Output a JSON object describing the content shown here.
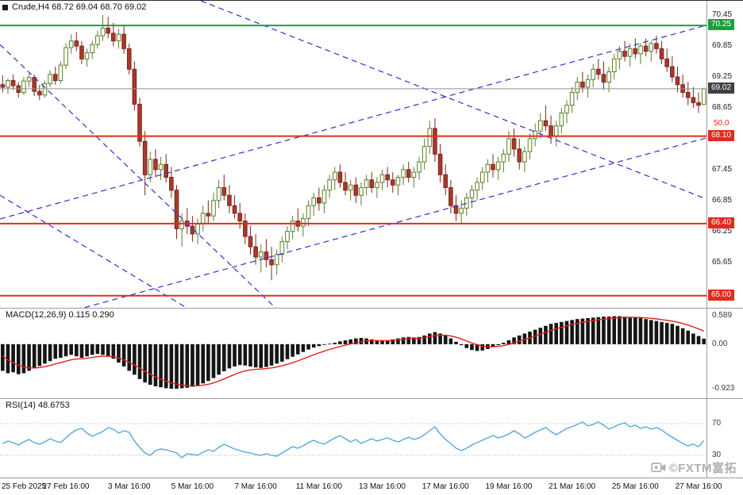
{
  "header": {
    "symbol_line": "Crude,H4 68.72 69.04 68.70 69.02"
  },
  "indicators": {
    "macd_label": "MACD(12,26,9) 0.115 0.290",
    "rsi_label": "RSI(14) 48.6753"
  },
  "watermark": {
    "text": "©FXTM富拓"
  },
  "time_axis": {
    "labels": [
      "25 Feb 2025",
      "27 Feb 16:00",
      "3 Mar 16:00",
      "5 Mar 16:00",
      "7 Mar 16:00",
      "11 Mar 16:00",
      "13 Mar 16:00",
      "17 Mar 16:00",
      "19 Mar 16:00",
      "21 Mar 16:00",
      "25 Mar 16:00",
      "27 Mar 16:00"
    ]
  },
  "colors": {
    "bull_fill": "#fdfef6",
    "bull_stroke": "#5b7d2f",
    "bear_fill": "#a8392c",
    "bear_stroke": "#7e251b",
    "macd_bar": "#151515",
    "macd_signal": "#e02318",
    "rsi_line": "#58a7dd",
    "trendline": "#3030cf",
    "green_level": "#1e9e3e",
    "red_level": "#e22b1e",
    "price_line": "#8f8f8f",
    "price_badge": "#3f3f3f",
    "separator": "#9c9c9c",
    "axis_text": "#1c1c1c",
    "sub_axis_text": "#3a3a3a"
  },
  "chart_data": [
    {
      "name": "price",
      "type": "candlestick",
      "symbol": "Crude",
      "timeframe": "H4",
      "title": "Crude,H4",
      "last_ohlc": {
        "open": 68.72,
        "high": 69.04,
        "low": 68.7,
        "close": 69.02
      },
      "ylim": [
        64.78,
        70.73
      ],
      "yticks": [
        70.45,
        69.85,
        69.25,
        68.65,
        67.45,
        66.85,
        66.25,
        65.65
      ],
      "hlines": [
        {
          "price": 70.25,
          "color": "#1e9e3e",
          "width": 2,
          "badge": true
        },
        {
          "price": 69.02,
          "color": "#8f8f8f",
          "width": 1,
          "badge": true,
          "badge_color": "#3f3f3f"
        },
        {
          "price": 68.1,
          "color": "#e22b1e",
          "width": 2,
          "badge": true,
          "tag": "50.0"
        },
        {
          "price": 66.4,
          "color": "#e22b1e",
          "width": 2,
          "badge": true
        },
        {
          "price": 65.0,
          "color": "#e22b1e",
          "width": 2,
          "badge": true
        }
      ],
      "trendlines": [
        {
          "i1": -0.5,
          "p1": 66.49,
          "i2": 136.5,
          "p2": 70.34
        },
        {
          "i1": 13.8,
          "p1": 64.72,
          "i2": 140.4,
          "p2": 68.26
        },
        {
          "i1": 37.6,
          "p1": 70.73,
          "i2": 140.4,
          "p2": 66.6
        },
        {
          "i1": -0.5,
          "p1": 69.88,
          "i2": 52.2,
          "p2": 64.72
        },
        {
          "i1": -0.5,
          "p1": 66.95,
          "i2": 35.6,
          "p2": 64.72
        }
      ],
      "candles": [
        [
          69.1,
          69.28,
          68.95,
          69.05
        ],
        [
          69.05,
          69.22,
          68.92,
          69.18
        ],
        [
          69.18,
          69.3,
          69.0,
          69.08
        ],
        [
          69.08,
          69.15,
          68.85,
          68.95
        ],
        [
          68.95,
          69.25,
          68.9,
          69.17
        ],
        [
          69.17,
          69.32,
          69.05,
          69.24
        ],
        [
          69.24,
          69.3,
          68.88,
          68.97
        ],
        [
          68.97,
          69.1,
          68.8,
          68.9
        ],
        [
          68.9,
          69.18,
          68.85,
          69.12
        ],
        [
          69.12,
          69.38,
          69.05,
          69.3
        ],
        [
          69.3,
          69.45,
          69.1,
          69.18
        ],
        [
          69.18,
          69.55,
          69.12,
          69.48
        ],
        [
          69.48,
          69.9,
          69.4,
          69.82
        ],
        [
          69.82,
          70.08,
          69.7,
          69.95
        ],
        [
          69.95,
          70.12,
          69.75,
          69.85
        ],
        [
          69.85,
          69.95,
          69.5,
          69.6
        ],
        [
          69.6,
          69.8,
          69.45,
          69.72
        ],
        [
          69.72,
          69.95,
          69.6,
          69.88
        ],
        [
          69.88,
          70.15,
          69.8,
          70.05
        ],
        [
          70.05,
          70.45,
          69.95,
          70.2
        ],
        [
          70.2,
          70.42,
          70.0,
          70.1
        ],
        [
          70.1,
          70.3,
          69.85,
          69.95
        ],
        [
          69.95,
          70.18,
          69.8,
          70.08
        ],
        [
          70.08,
          70.25,
          69.7,
          69.8
        ],
        [
          69.8,
          69.9,
          69.3,
          69.4
        ],
        [
          69.4,
          69.55,
          68.6,
          68.72
        ],
        [
          68.72,
          68.85,
          67.9,
          68.0
        ],
        [
          68.0,
          68.2,
          66.95,
          67.35
        ],
        [
          67.35,
          67.8,
          67.2,
          67.65
        ],
        [
          67.65,
          67.85,
          67.3,
          67.45
        ],
        [
          67.45,
          67.7,
          67.25,
          67.55
        ],
        [
          67.55,
          67.75,
          67.2,
          67.3
        ],
        [
          67.3,
          67.5,
          66.9,
          67.05
        ],
        [
          67.05,
          67.15,
          66.1,
          66.3
        ],
        [
          66.3,
          66.6,
          65.95,
          66.45
        ],
        [
          66.45,
          66.7,
          66.2,
          66.35
        ],
        [
          66.35,
          66.55,
          66.05,
          66.2
        ],
        [
          66.2,
          66.5,
          66.0,
          66.4
        ],
        [
          66.4,
          66.75,
          66.25,
          66.6
        ],
        [
          66.6,
          66.85,
          66.4,
          66.55
        ],
        [
          66.55,
          67.0,
          66.45,
          66.85
        ],
        [
          66.85,
          67.25,
          66.7,
          67.1
        ],
        [
          67.1,
          67.35,
          66.85,
          66.95
        ],
        [
          66.95,
          67.15,
          66.6,
          66.75
        ],
        [
          66.75,
          66.95,
          66.5,
          66.6
        ],
        [
          66.6,
          66.8,
          66.3,
          66.45
        ],
        [
          66.45,
          66.6,
          66.0,
          66.15
        ],
        [
          66.15,
          66.35,
          65.8,
          65.95
        ],
        [
          65.95,
          66.2,
          65.6,
          65.75
        ],
        [
          65.75,
          66.0,
          65.45,
          65.85
        ],
        [
          65.85,
          66.1,
          65.55,
          65.7
        ],
        [
          65.7,
          65.95,
          65.3,
          65.6
        ],
        [
          65.6,
          65.9,
          65.4,
          65.8
        ],
        [
          65.8,
          66.15,
          65.65,
          66.05
        ],
        [
          66.05,
          66.35,
          65.9,
          66.25
        ],
        [
          66.25,
          66.55,
          66.1,
          66.45
        ],
        [
          66.45,
          66.7,
          66.25,
          66.35
        ],
        [
          66.35,
          66.6,
          66.15,
          66.5
        ],
        [
          66.5,
          66.85,
          66.35,
          66.75
        ],
        [
          66.75,
          67.0,
          66.55,
          66.9
        ],
        [
          66.9,
          67.1,
          66.65,
          66.8
        ],
        [
          66.8,
          67.15,
          66.6,
          67.05
        ],
        [
          67.05,
          67.35,
          66.9,
          67.25
        ],
        [
          67.25,
          67.5,
          67.05,
          67.4
        ],
        [
          67.4,
          67.55,
          67.1,
          67.2
        ],
        [
          67.2,
          67.4,
          66.95,
          67.05
        ],
        [
          67.05,
          67.25,
          66.85,
          67.15
        ],
        [
          67.15,
          67.3,
          66.8,
          66.95
        ],
        [
          66.95,
          67.2,
          66.75,
          67.1
        ],
        [
          67.1,
          67.35,
          66.95,
          67.25
        ],
        [
          67.25,
          67.4,
          67.0,
          67.1
        ],
        [
          67.1,
          67.3,
          66.9,
          67.2
        ],
        [
          67.2,
          67.45,
          67.05,
          67.35
        ],
        [
          67.35,
          67.5,
          67.1,
          67.25
        ],
        [
          67.25,
          67.4,
          67.0,
          67.15
        ],
        [
          67.15,
          67.35,
          66.95,
          67.3
        ],
        [
          67.3,
          67.55,
          67.15,
          67.45
        ],
        [
          67.45,
          67.6,
          67.2,
          67.3
        ],
        [
          67.3,
          67.5,
          67.1,
          67.4
        ],
        [
          67.4,
          67.7,
          67.25,
          67.6
        ],
        [
          67.6,
          68.05,
          67.45,
          67.9
        ],
        [
          67.9,
          68.4,
          67.75,
          68.25
        ],
        [
          68.25,
          68.45,
          67.6,
          67.75
        ],
        [
          67.75,
          67.95,
          67.2,
          67.35
        ],
        [
          67.35,
          67.55,
          66.95,
          67.1
        ],
        [
          67.1,
          67.25,
          66.6,
          66.75
        ],
        [
          66.75,
          66.95,
          66.45,
          66.6
        ],
        [
          66.6,
          66.85,
          66.4,
          66.7
        ],
        [
          66.7,
          67.0,
          66.55,
          66.9
        ],
        [
          66.9,
          67.15,
          66.7,
          67.05
        ],
        [
          67.05,
          67.3,
          66.85,
          67.2
        ],
        [
          67.2,
          67.5,
          67.05,
          67.4
        ],
        [
          67.4,
          67.65,
          67.2,
          67.55
        ],
        [
          67.55,
          67.75,
          67.3,
          67.45
        ],
        [
          67.45,
          67.7,
          67.25,
          67.6
        ],
        [
          67.6,
          67.85,
          67.4,
          67.75
        ],
        [
          67.75,
          68.2,
          67.6,
          68.05
        ],
        [
          68.05,
          68.25,
          67.7,
          67.85
        ],
        [
          67.85,
          68.05,
          67.45,
          67.6
        ],
        [
          67.6,
          67.9,
          67.4,
          67.8
        ],
        [
          67.8,
          68.15,
          67.65,
          68.05
        ],
        [
          68.05,
          68.35,
          67.9,
          68.2
        ],
        [
          68.2,
          68.55,
          68.05,
          68.4
        ],
        [
          68.4,
          68.7,
          68.2,
          68.3
        ],
        [
          68.3,
          68.5,
          67.95,
          68.1
        ],
        [
          68.1,
          68.4,
          67.9,
          68.3
        ],
        [
          68.3,
          68.65,
          68.15,
          68.55
        ],
        [
          68.55,
          68.8,
          68.35,
          68.7
        ],
        [
          68.7,
          69.05,
          68.55,
          68.95
        ],
        [
          68.95,
          69.25,
          68.8,
          69.15
        ],
        [
          69.15,
          69.35,
          68.95,
          69.05
        ],
        [
          69.05,
          69.3,
          68.85,
          69.2
        ],
        [
          69.2,
          69.5,
          69.05,
          69.4
        ],
        [
          69.4,
          69.6,
          69.2,
          69.3
        ],
        [
          69.3,
          69.55,
          69.0,
          69.15
        ],
        [
          69.15,
          69.45,
          68.95,
          69.35
        ],
        [
          69.35,
          69.7,
          69.2,
          69.6
        ],
        [
          69.6,
          69.85,
          69.4,
          69.75
        ],
        [
          69.75,
          69.95,
          69.55,
          69.65
        ],
        [
          69.65,
          69.9,
          69.45,
          69.8
        ],
        [
          69.8,
          70.0,
          69.6,
          69.7
        ],
        [
          69.7,
          69.9,
          69.5,
          69.85
        ],
        [
          69.85,
          70.0,
          69.65,
          69.75
        ],
        [
          69.75,
          69.95,
          69.55,
          69.9
        ],
        [
          69.9,
          70.05,
          69.7,
          69.8
        ],
        [
          69.8,
          69.95,
          69.5,
          69.6
        ],
        [
          69.6,
          69.8,
          69.35,
          69.45
        ],
        [
          69.45,
          69.65,
          69.15,
          69.25
        ],
        [
          69.25,
          69.45,
          68.95,
          69.1
        ],
        [
          69.1,
          69.3,
          68.85,
          68.95
        ],
        [
          68.95,
          69.15,
          68.7,
          68.85
        ],
        [
          68.85,
          69.05,
          68.65,
          68.75
        ],
        [
          68.75,
          68.95,
          68.55,
          68.7
        ],
        [
          68.72,
          69.04,
          68.7,
          69.02
        ]
      ]
    },
    {
      "name": "macd",
      "type": "bar",
      "label": "MACD(12,26,9) 0.115 0.290",
      "macd_value": 0.115,
      "signal_value": 0.29,
      "ylim": [
        -1.1,
        0.72
      ],
      "yticks": [
        [
          0.589,
          "0.589"
        ],
        [
          0,
          "0.00"
        ],
        [
          -0.923,
          "-0.923"
        ]
      ],
      "values": [
        -0.55,
        -0.6,
        -0.58,
        -0.62,
        -0.6,
        -0.55,
        -0.5,
        -0.45,
        -0.4,
        -0.35,
        -0.3,
        -0.28,
        -0.25,
        -0.22,
        -0.25,
        -0.28,
        -0.25,
        -0.22,
        -0.2,
        -0.22,
        -0.25,
        -0.3,
        -0.38,
        -0.46,
        -0.55,
        -0.63,
        -0.72,
        -0.79,
        -0.84,
        -0.87,
        -0.89,
        -0.91,
        -0.92,
        -0.92,
        -0.91,
        -0.9,
        -0.88,
        -0.85,
        -0.81,
        -0.76,
        -0.7,
        -0.63,
        -0.56,
        -0.5,
        -0.46,
        -0.43,
        -0.44,
        -0.46,
        -0.48,
        -0.49,
        -0.47,
        -0.44,
        -0.4,
        -0.36,
        -0.31,
        -0.26,
        -0.21,
        -0.16,
        -0.11,
        -0.07,
        -0.04,
        -0.01,
        0.01,
        0.03,
        0.06,
        0.08,
        0.1,
        0.12,
        0.13,
        0.12,
        0.1,
        0.08,
        0.07,
        0.08,
        0.1,
        0.12,
        0.14,
        0.15,
        0.14,
        0.15,
        0.18,
        0.22,
        0.25,
        0.22,
        0.18,
        0.12,
        0.05,
        -0.02,
        -0.08,
        -0.12,
        -0.14,
        -0.13,
        -0.1,
        -0.06,
        -0.02,
        0.03,
        0.08,
        0.14,
        0.18,
        0.22,
        0.26,
        0.3,
        0.34,
        0.38,
        0.42,
        0.44,
        0.46,
        0.48,
        0.5,
        0.52,
        0.53,
        0.54,
        0.55,
        0.56,
        0.57,
        0.57,
        0.58,
        0.58,
        0.57,
        0.56,
        0.55,
        0.54,
        0.52,
        0.5,
        0.48,
        0.46,
        0.44,
        0.42,
        0.38,
        0.33,
        0.28,
        0.22,
        0.17,
        0.115
      ]
    },
    {
      "name": "rsi",
      "type": "line",
      "label": "RSI(14) 48.6753",
      "value": 48.6753,
      "levels": [
        70,
        30
      ],
      "ylim": [
        2,
        100
      ],
      "values": [
        45,
        48,
        46,
        43,
        47,
        50,
        46,
        44,
        47,
        51,
        48,
        46,
        52,
        58,
        62,
        64,
        58,
        54,
        57,
        60,
        65,
        63,
        58,
        61,
        59,
        48,
        40,
        33,
        30,
        36,
        38,
        37,
        35,
        33,
        27,
        32,
        31,
        30,
        34,
        37,
        35,
        40,
        44,
        41,
        38,
        36,
        34,
        33,
        31,
        30,
        32,
        30,
        29,
        33,
        37,
        41,
        39,
        42,
        46,
        49,
        46,
        44,
        48,
        52,
        55,
        51,
        47,
        50,
        45,
        48,
        51,
        48,
        50,
        52,
        49,
        47,
        50,
        53,
        50,
        52,
        56,
        61,
        66,
        57,
        50,
        45,
        39,
        36,
        39,
        43,
        46,
        49,
        52,
        55,
        52,
        54,
        57,
        61,
        57,
        52,
        55,
        59,
        62,
        65,
        60,
        56,
        60,
        64,
        66,
        69,
        72,
        67,
        69,
        72,
        68,
        63,
        66,
        69,
        71,
        66,
        68,
        64,
        66,
        63,
        65,
        62,
        57,
        53,
        49,
        45,
        42,
        44,
        41,
        48.68
      ]
    }
  ]
}
